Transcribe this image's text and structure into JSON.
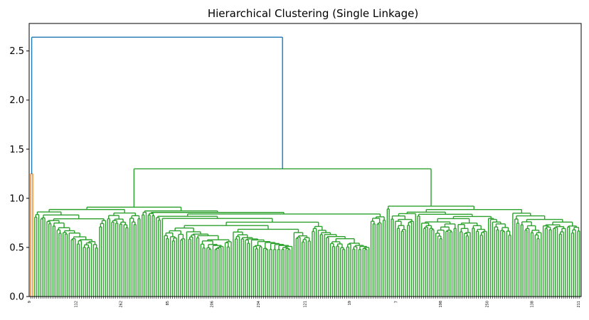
{
  "chart_data": {
    "type": "dendrogram",
    "title": "Hierarchical Clustering (Single Linkage)",
    "xlabel": "",
    "ylabel": "",
    "ylim": [
      0,
      2.78
    ],
    "yticks": [
      "0.0",
      "0.5",
      "1.0",
      "1.5",
      "2.0",
      "2.5"
    ],
    "ytick_values": [
      0.0,
      0.5,
      1.0,
      1.5,
      2.0,
      2.5
    ],
    "grid": false,
    "leaf_count": 272,
    "colors": {
      "root": "#1f77b4",
      "cluster_1": "#ff7f0e",
      "cluster_2": "#2ca02c"
    },
    "root_merge_height": 2.64,
    "main_cluster_merge_height": 1.3,
    "small_cluster_merge_height": 1.25,
    "subcluster_merge_heights": {
      "left_group": [
        0.91,
        0.88,
        0.82,
        0.8,
        0.78,
        0.76,
        0.75,
        0.72,
        0.7
      ],
      "right_group": [
        0.92,
        0.9,
        0.88,
        0.86,
        0.84,
        0.8,
        0.78,
        0.76,
        0.74
      ]
    },
    "typical_leaf_merge_range": [
      0.48,
      0.75
    ],
    "leaf_labels_visible_sample": [
      "9",
      "112",
      "262",
      "85",
      "206",
      "234",
      "121",
      "19",
      "7",
      "198",
      "250",
      "138",
      "211"
    ]
  }
}
